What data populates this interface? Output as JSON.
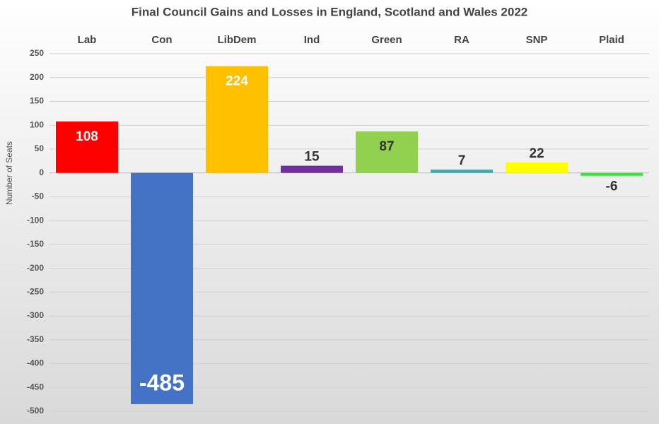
{
  "chart_data": {
    "type": "bar",
    "title": "Final Council Gains and Losses in England, Scotland and Wales 2022",
    "y_label": "Number of Seats",
    "categories": [
      "Lab",
      "Con",
      "LibDem",
      "Ind",
      "Green",
      "RA",
      "SNP",
      "Plaid"
    ],
    "values": [
      108,
      -485,
      224,
      15,
      87,
      7,
      22,
      -6
    ],
    "colors": [
      "#ff0000",
      "#4472c4",
      "#ffc000",
      "#7030a0",
      "#92d050",
      "#4aa8ad",
      "#ffff00",
      "#33e633"
    ],
    "value_label_colors": [
      "#ffffff",
      "#ffffff",
      "#ffffff",
      "#333333",
      "#333333",
      "#333333",
      "#333333",
      "#333333"
    ],
    "ylim": [
      -500,
      250
    ],
    "yticks": [
      -500,
      -450,
      -400,
      -350,
      -300,
      -250,
      -200,
      -150,
      -100,
      -50,
      0,
      50,
      100,
      150,
      200,
      250
    ],
    "grid": true
  }
}
